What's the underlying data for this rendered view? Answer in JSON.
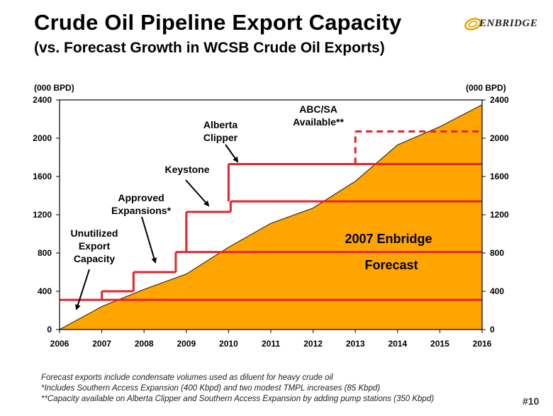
{
  "header": {
    "title": "Crude Oil Pipeline Export Capacity",
    "subtitle": "(vs. Forecast Growth in WCSB Crude Oil Exports)",
    "logo_text": "ENBRIDGE"
  },
  "footer": {
    "notes": [
      "Forecast exports include condensate volumes used as diluent for heavy crude oil",
      "*Includes Southern Access Expansion (400 Kbpd) and two modest TMPL increases (85 Kbpd)",
      "**Capacity available on Alberta Clipper and Southern Access Expansion by adding pump stations (350 Kbpd)"
    ],
    "slide_number": "#10"
  },
  "colors": {
    "forecast_fill": "#FFA500",
    "capacity_line": "#E3242B",
    "annotation_text": "#000000"
  },
  "chart_data": {
    "type": "area",
    "ylabel_left": "(000 BPD)",
    "ylabel_right": "(000 BPD)",
    "xlim": [
      2006,
      2016
    ],
    "ylim": [
      0,
      2400
    ],
    "x_ticks": [
      "2006",
      "2007",
      "2008",
      "2009",
      "2010",
      "2011",
      "2012",
      "2013",
      "2014",
      "2015",
      "2016"
    ],
    "y_ticks": [
      "0",
      "400",
      "800",
      "1200",
      "1600",
      "2000",
      "2400"
    ],
    "grid": false,
    "forecast": {
      "label_line1": "2007 Enbridge",
      "label_line2": "Forecast",
      "x": [
        2006,
        2007,
        2008,
        2009,
        2010,
        2011,
        2012,
        2013,
        2014,
        2015,
        2016
      ],
      "y": [
        0,
        240,
        420,
        580,
        860,
        1110,
        1270,
        1550,
        1930,
        2120,
        2350
      ]
    },
    "capacity_steps": [
      {
        "x_start": 2006,
        "x_end": 2016,
        "y": 310
      },
      {
        "x_start": 2007,
        "x_end": 2007.75,
        "y": 400
      },
      {
        "x_start": 2007.75,
        "x_end": 2008.75,
        "y": 600
      },
      {
        "x_start": 2008.75,
        "x_end": 2016,
        "y": 810
      },
      {
        "x_start": 2009,
        "x_end": 2010.05,
        "y": 1230
      },
      {
        "x_start": 2010.05,
        "x_end": 2016,
        "y": 1340
      },
      {
        "x_start": 2010,
        "x_end": 2016,
        "y": 1730
      }
    ],
    "capacity_dashed": {
      "x_start": 2013,
      "x_end": 2016,
      "y": 2070
    },
    "annotations": [
      {
        "name": "unutilized",
        "lines": [
          "Unutilized",
          "Export",
          "Capacity"
        ]
      },
      {
        "name": "approved",
        "lines": [
          "Approved",
          "Expansions*"
        ]
      },
      {
        "name": "keystone",
        "lines": [
          "Keystone"
        ]
      },
      {
        "name": "alberta-clipper",
        "lines": [
          "Alberta",
          "Clipper"
        ]
      },
      {
        "name": "abc-sa",
        "lines": [
          "ABC/SA",
          "Available**"
        ]
      }
    ]
  }
}
